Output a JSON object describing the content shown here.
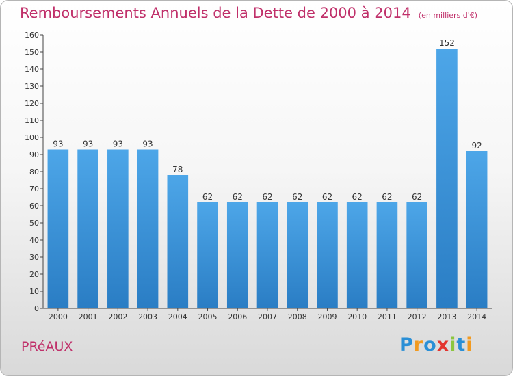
{
  "header": {
    "title": "Remboursements Annuels de la Dette de 2000 à 2014",
    "unit": "(en milliers d'€)"
  },
  "footer": {
    "place": "PRéAUX",
    "logo_letters": [
      "P",
      "r",
      "o",
      "x",
      "i",
      "t",
      "i"
    ],
    "logo_colors": [
      "#2a8fd6",
      "#f29a1f",
      "#2a8fd6",
      "#e3342f",
      "#8cc63f",
      "#2a8fd6",
      "#f29a1f"
    ]
  },
  "chart_data": {
    "type": "bar",
    "title": "Remboursements Annuels de la Dette de 2000 à 2014",
    "categories": [
      "2000",
      "2001",
      "2002",
      "2003",
      "2004",
      "2005",
      "2006",
      "2007",
      "2008",
      "2009",
      "2010",
      "2011",
      "2012",
      "2013",
      "2014"
    ],
    "values": [
      93,
      93,
      93,
      93,
      78,
      62,
      62,
      62,
      62,
      62,
      62,
      62,
      62,
      152,
      92
    ],
    "data_labels": [
      "93",
      "93",
      "93",
      "93",
      "78",
      "62",
      "62",
      "62",
      "62",
      "62",
      "62",
      "62",
      "62",
      "152",
      "92"
    ],
    "yticks": [
      0,
      10,
      20,
      30,
      40,
      50,
      60,
      70,
      80,
      90,
      100,
      110,
      120,
      130,
      140,
      150,
      160
    ],
    "ylim": [
      0,
      160
    ],
    "grid": false,
    "bar_color": "#4da6e8",
    "bar_color_dark": "#2a7dc4"
  }
}
